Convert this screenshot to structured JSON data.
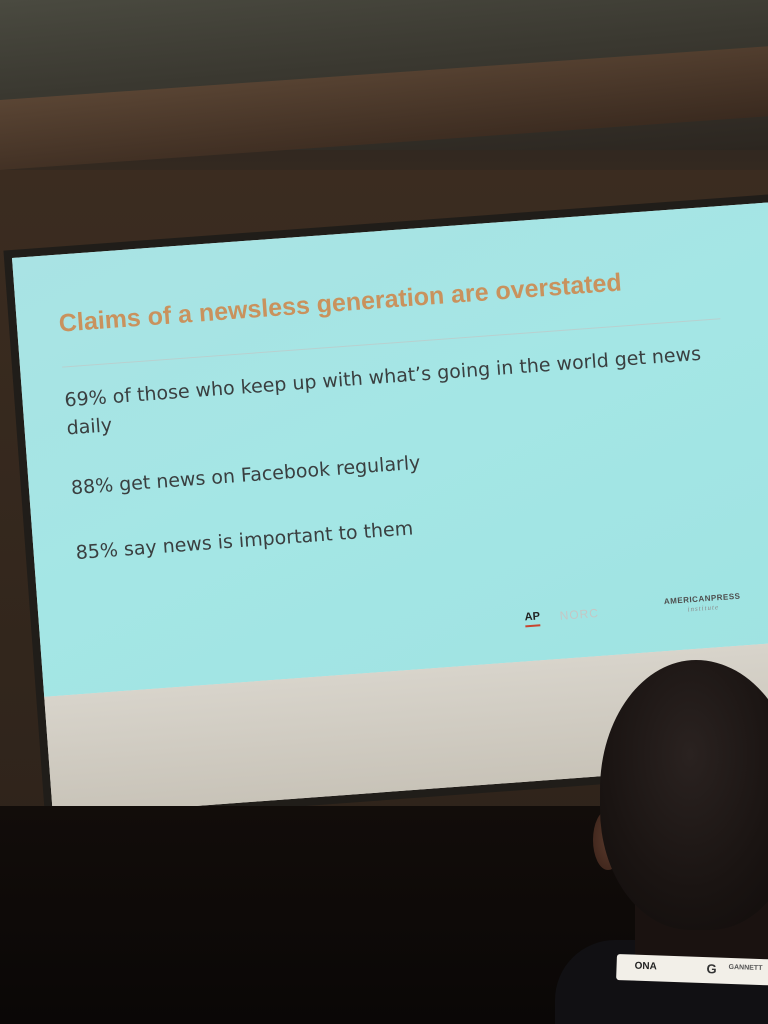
{
  "slide": {
    "title": "Claims of a newsless generation are overstated",
    "bullets": [
      "69% of those who keep up with what’s going in the world get news daily",
      "88% get news on Facebook regularly",
      "85% say news is important to them"
    ],
    "logos": {
      "ap": "AP",
      "norc": "NORC",
      "api": "AMERICANPRESS",
      "api_sub": "institute"
    }
  },
  "badge": {
    "ona": "ONA",
    "g": "G",
    "gannett": "GANNETT"
  }
}
